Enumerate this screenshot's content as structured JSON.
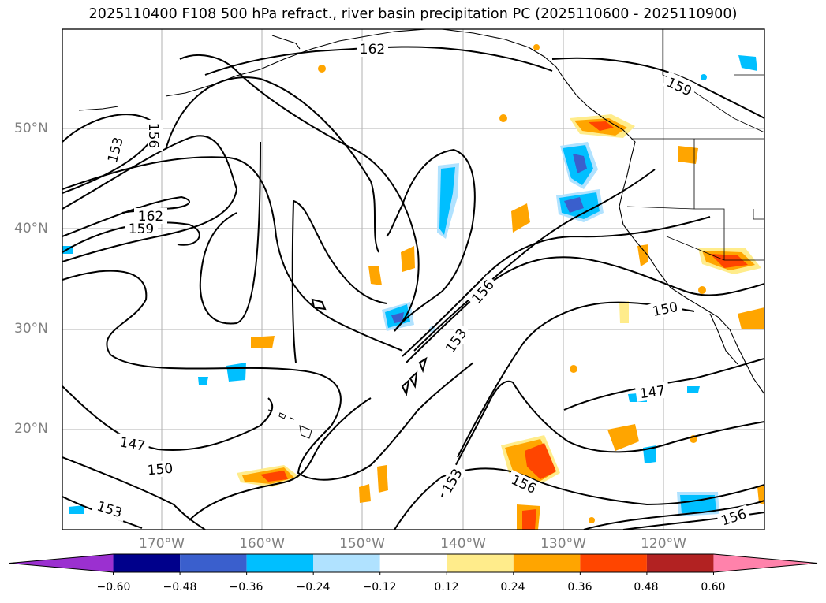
{
  "title": "2025110400 F108 500 hPa refract., river basin precipitation PC (2025110600 - 2025110900)",
  "lat_labels": [
    "50°N",
    "40°N",
    "30°N",
    "20°N"
  ],
  "lon_labels": [
    "170°W",
    "160°W",
    "150°W",
    "140°W",
    "130°W",
    "120°W"
  ],
  "contour_labels": [
    "162",
    "159",
    "156",
    "153",
    "162",
    "159",
    "156",
    "153",
    "150",
    "147",
    "147",
    "150",
    "153",
    "153",
    "156",
    "156"
  ],
  "colorbar": {
    "ticks": [
      "−0.60",
      "−0.48",
      "−0.36",
      "−0.24",
      "−0.12",
      "0.12",
      "0.24",
      "0.36",
      "0.48",
      "0.60"
    ],
    "colors": [
      "#9b30d0",
      "#00008b",
      "#3a5fcd",
      "#00bfff",
      "#b0e2ff",
      "#ffffff",
      "#ffec8b",
      "#ffa500",
      "#ff4500",
      "#b22222",
      "#ff82ab"
    ]
  }
}
